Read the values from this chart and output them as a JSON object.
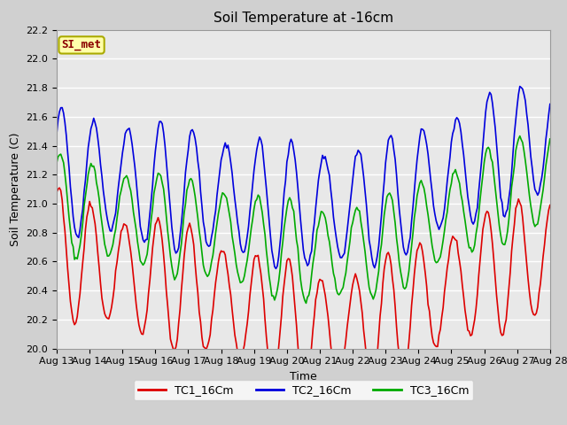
{
  "title": "Soil Temperature at -16cm",
  "xlabel": "Time",
  "ylabel": "Soil Temperature (C)",
  "ylim": [
    20.0,
    22.2
  ],
  "xlim": [
    0,
    15
  ],
  "x_tick_labels": [
    "Aug 13",
    "Aug 14",
    "Aug 15",
    "Aug 16",
    "Aug 17",
    "Aug 18",
    "Aug 19",
    "Aug 20",
    "Aug 21",
    "Aug 22",
    "Aug 23",
    "Aug 24",
    "Aug 25",
    "Aug 26",
    "Aug 27",
    "Aug 28"
  ],
  "series": {
    "TC1_16Cm": {
      "color": "#dd0000",
      "linewidth": 1.2
    },
    "TC2_16Cm": {
      "color": "#0000dd",
      "linewidth": 1.2
    },
    "TC3_16Cm": {
      "color": "#00aa00",
      "linewidth": 1.2
    }
  },
  "annotation": {
    "text": "SI_met",
    "text_color": "#8b0000",
    "bg_color": "#ffffaa",
    "border_color": "#aaaa00",
    "fontsize": 9
  },
  "fig_bg": "#d0d0d0",
  "plot_bg": "#e8e8e8",
  "grid_color": "#ffffff",
  "title_fontsize": 11,
  "axis_fontsize": 9,
  "tick_fontsize": 8,
  "legend_fontsize": 9
}
